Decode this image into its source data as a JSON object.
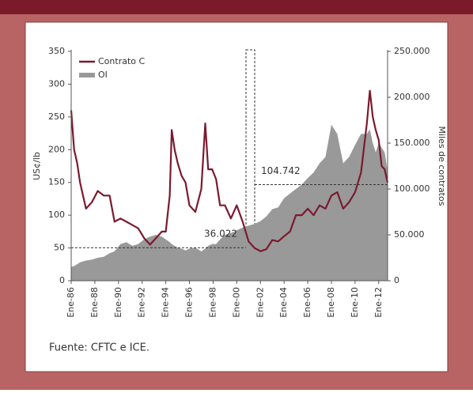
{
  "chart_data": {
    "type": "line",
    "ylabel": "US¢/lb",
    "y2label": "Miles de contratos",
    "source": "Fuente: CFTC e ICE.",
    "x": [
      "1986-01",
      "1986-04",
      "1986-07",
      "1986-10",
      "1987-04",
      "1987-10",
      "1988-04",
      "1988-10",
      "1989-04",
      "1989-09",
      "1990-03",
      "1990-09",
      "1991-03",
      "1991-09",
      "1992-03",
      "1992-09",
      "1993-03",
      "1993-09",
      "1994-01",
      "1994-05",
      "1994-07",
      "1994-10",
      "1995-01",
      "1995-05",
      "1995-09",
      "1996-01",
      "1996-07",
      "1997-01",
      "1997-05",
      "1997-08",
      "1997-12",
      "1998-04",
      "1998-08",
      "1999-01",
      "1999-07",
      "2000-01",
      "2000-07",
      "2001-01",
      "2001-07",
      "2002-01",
      "2002-07",
      "2003-01",
      "2003-07",
      "2004-01",
      "2004-07",
      "2005-01",
      "2005-07",
      "2006-01",
      "2006-07",
      "2007-01",
      "2007-07",
      "2008-01",
      "2008-07",
      "2009-01",
      "2009-07",
      "2010-01",
      "2010-07",
      "2011-01",
      "2011-04",
      "2011-07",
      "2011-10",
      "2012-01",
      "2012-04",
      "2012-07",
      "2012-10"
    ],
    "series": [
      {
        "name": "Contrato C",
        "color": "#7b1a2e",
        "values": [
          260,
          200,
          180,
          150,
          110,
          120,
          137,
          130,
          130,
          90,
          95,
          90,
          85,
          80,
          65,
          55,
          65,
          75,
          75,
          130,
          230,
          200,
          180,
          160,
          150,
          115,
          105,
          140,
          240,
          170,
          170,
          155,
          115,
          115,
          95,
          115,
          90,
          60,
          50,
          45,
          48,
          62,
          60,
          68,
          75,
          100,
          100,
          110,
          100,
          115,
          110,
          130,
          135,
          110,
          120,
          135,
          165,
          240,
          290,
          250,
          230,
          215,
          175,
          170,
          150
        ]
      },
      {
        "name": "OI",
        "color": "#999999",
        "axis": "y2",
        "values": [
          15000,
          16000,
          18000,
          20000,
          22000,
          23000,
          25000,
          26000,
          30000,
          32000,
          40000,
          42000,
          38000,
          40000,
          45000,
          48000,
          50000,
          48000,
          45000,
          42000,
          40000,
          38000,
          36000,
          35000,
          33000,
          35000,
          36000,
          32000,
          35000,
          38000,
          40000,
          40000,
          45000,
          50000,
          52000,
          55000,
          58000,
          60000,
          62000,
          65000,
          70000,
          78000,
          80000,
          90000,
          95000,
          100000,
          105000,
          112000,
          118000,
          128000,
          135000,
          170000,
          160000,
          128000,
          135000,
          148000,
          160000,
          160000,
          165000,
          150000,
          140000,
          150000,
          145000,
          140000,
          120000
        ]
      }
    ],
    "xlim": [
      "1986-01",
      "2012-10"
    ],
    "xticks": [
      {
        "value": "1986-01",
        "label": "Ene-86"
      },
      {
        "value": "1988-01",
        "label": "Ene-88"
      },
      {
        "value": "1990-01",
        "label": "Ene-90"
      },
      {
        "value": "1992-01",
        "label": "Ene-92"
      },
      {
        "value": "1994-01",
        "label": "Ene-94"
      },
      {
        "value": "1996-01",
        "label": "Ene-96"
      },
      {
        "value": "1998-01",
        "label": "Ene-98"
      },
      {
        "value": "2000-01",
        "label": "Ene-00"
      },
      {
        "value": "2002-01",
        "label": "Ene-02"
      },
      {
        "value": "2004-01",
        "label": "Ene-04"
      },
      {
        "value": "2006-01",
        "label": "Ene-06"
      },
      {
        "value": "2008-01",
        "label": "Ene-08"
      },
      {
        "value": "2010-01",
        "label": "Ene-10"
      },
      {
        "value": "2012-01",
        "label": "Ene-12"
      }
    ],
    "ylim": [
      0,
      350
    ],
    "yticks": [
      0,
      50,
      100,
      150,
      200,
      250,
      300,
      350
    ],
    "y2lim": [
      0,
      250000
    ],
    "y2ticks": [
      0,
      {
        "value": 50000,
        "label": "50.000"
      },
      {
        "value": 100000,
        "label": "100.000"
      },
      {
        "value": 150000,
        "label": "150.000"
      },
      {
        "value": 200000,
        "label": "200.000"
      },
      {
        "value": 250000,
        "label": "250.000"
      }
    ],
    "annotations": [
      {
        "text": "36.022",
        "value": 36022
      },
      {
        "text": "104.742",
        "value": 104742
      }
    ]
  }
}
